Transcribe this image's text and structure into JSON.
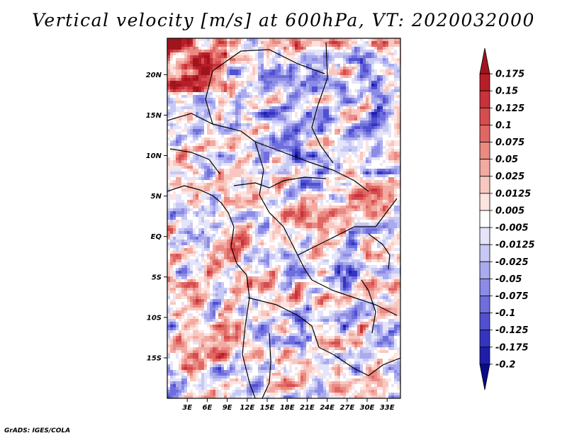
{
  "chart_data": {
    "type": "heatmap",
    "title": "Vertical velocity [m/s] at 600hPa, VT: 2020032000",
    "variable": "Vertical velocity",
    "units": "m/s",
    "level": "600hPa",
    "valid_time": "2020032000",
    "lon_range": [
      0,
      35
    ],
    "lat_range": [
      -20,
      24.5
    ],
    "x_ticks": [
      {
        "value": 3,
        "label": "3E"
      },
      {
        "value": 6,
        "label": "6E"
      },
      {
        "value": 9,
        "label": "9E"
      },
      {
        "value": 12,
        "label": "12E"
      },
      {
        "value": 15,
        "label": "15E"
      },
      {
        "value": 18,
        "label": "18E"
      },
      {
        "value": 21,
        "label": "21E"
      },
      {
        "value": 24,
        "label": "24E"
      },
      {
        "value": 27,
        "label": "27E"
      },
      {
        "value": 30,
        "label": "30E"
      },
      {
        "value": 33,
        "label": "33E"
      }
    ],
    "y_ticks": [
      {
        "value": 20,
        "label": "20N"
      },
      {
        "value": 15,
        "label": "15N"
      },
      {
        "value": 10,
        "label": "10N"
      },
      {
        "value": 5,
        "label": "5N"
      },
      {
        "value": 0,
        "label": "EQ"
      },
      {
        "value": -5,
        "label": "5S"
      },
      {
        "value": -10,
        "label": "10S"
      },
      {
        "value": -15,
        "label": "15S"
      }
    ],
    "colorbar": {
      "labels": [
        "0.175",
        "0.15",
        "0.125",
        "0.1",
        "0.075",
        "0.05",
        "0.025",
        "0.0125",
        "0.005",
        "-0.005",
        "-0.0125",
        "-0.025",
        "-0.05",
        "-0.075",
        "-0.1",
        "-0.125",
        "-0.175",
        "-0.2"
      ],
      "colors": [
        "#a0141e",
        "#b71e28",
        "#c8323a",
        "#d64c4f",
        "#e06864",
        "#ea8a82",
        "#f2aaa2",
        "#f8c8c0",
        "#fde4e0",
        "#ffffff",
        "#e4e4fa",
        "#c8c8f4",
        "#aaaaee",
        "#8c8ce6",
        "#6e6edc",
        "#5050d0",
        "#3434c0",
        "#1e1eaa",
        "#0a0a8c"
      ]
    }
  },
  "credit": "GrADS: IGES/COLA"
}
